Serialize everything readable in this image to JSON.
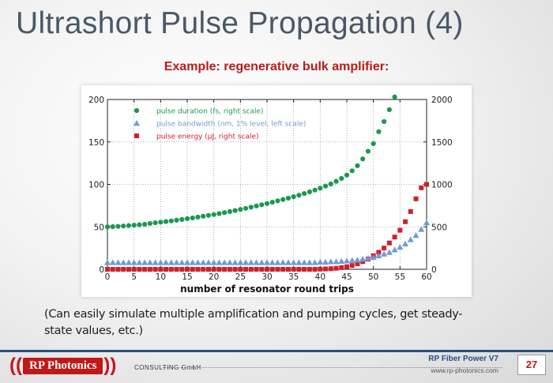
{
  "slide": {
    "title": "Ultrashort Pulse Propagation (4)",
    "subtitle": "Example: regenerative bulk amplifier:",
    "note": "(Can easily simulate multiple amplification and pumping cycles, get steady-state values, etc.)"
  },
  "footer": {
    "logo_left": "((",
    "logo_brand": "RP Photonics",
    "logo_right": "))",
    "consulting": "CONSULTING GmbH",
    "product": "RP Fiber Power V7",
    "website": "www.rp-photonics.com",
    "page_number": "27"
  },
  "colors": {
    "title": "#4a5868",
    "subtitle": "#b71c1c",
    "duration": "#1a9850",
    "bandwidth": "#6f9bd3",
    "energy": "#d0202a",
    "footer_line": "#2a4f80"
  },
  "chart_data": {
    "type": "scatter",
    "xlabel": "number of resonator round trips",
    "x_range": [
      0,
      60
    ],
    "y_left_range": [
      0,
      200
    ],
    "y_right_range": [
      0,
      2000
    ],
    "x_ticks": [
      0,
      5,
      10,
      15,
      20,
      25,
      30,
      35,
      40,
      45,
      50,
      55,
      60
    ],
    "y_left_ticks": [
      0,
      50,
      100,
      150,
      200
    ],
    "y_right_ticks": [
      0,
      500,
      1000,
      1500,
      2000
    ],
    "legend_position": "top-left",
    "series": [
      {
        "name": "pulse duration (fs, right scale)",
        "axis": "right",
        "marker": "circle",
        "color": "#1a9850",
        "x": [
          0,
          1,
          2,
          3,
          4,
          5,
          6,
          7,
          8,
          9,
          10,
          11,
          12,
          13,
          14,
          15,
          16,
          17,
          18,
          19,
          20,
          21,
          22,
          23,
          24,
          25,
          26,
          27,
          28,
          29,
          30,
          31,
          32,
          33,
          34,
          35,
          36,
          37,
          38,
          39,
          40,
          41,
          42,
          43,
          44,
          45,
          46,
          47,
          48,
          49,
          50,
          51,
          52,
          53,
          54
        ],
        "y": [
          500,
          502,
          505,
          510,
          515,
          520,
          525,
          530,
          540,
          548,
          555,
          562,
          570,
          578,
          587,
          596,
          605,
          615,
          625,
          635,
          645,
          656,
          668,
          680,
          692,
          705,
          718,
          732,
          746,
          760,
          775,
          790,
          806,
          822,
          838,
          855,
          873,
          892,
          912,
          933,
          955,
          980,
          1005,
          1035,
          1070,
          1110,
          1160,
          1220,
          1300,
          1390,
          1480,
          1620,
          1740,
          1880,
          2030
        ]
      },
      {
        "name": "pulse bandwidth (nm, 1% level, left scale)",
        "axis": "left",
        "marker": "triangle",
        "color": "#6f9bd3",
        "x": [
          0,
          1,
          2,
          3,
          4,
          5,
          6,
          7,
          8,
          9,
          10,
          11,
          12,
          13,
          14,
          15,
          16,
          17,
          18,
          19,
          20,
          21,
          22,
          23,
          24,
          25,
          26,
          27,
          28,
          29,
          30,
          31,
          32,
          33,
          34,
          35,
          36,
          37,
          38,
          39,
          40,
          41,
          42,
          43,
          44,
          45,
          46,
          47,
          48,
          49,
          50,
          51,
          52,
          53,
          54,
          55,
          56,
          57,
          58,
          59,
          60
        ],
        "y": [
          8,
          8,
          8,
          8,
          8,
          8,
          8,
          8,
          8,
          8,
          8,
          8,
          8,
          8,
          8,
          8,
          8,
          8,
          8,
          8,
          8,
          8,
          8,
          8,
          8,
          8,
          8,
          8,
          8,
          8,
          8,
          8,
          8,
          8,
          8,
          8,
          8,
          8,
          8,
          8,
          8.5,
          8.5,
          9,
          9,
          9.5,
          10,
          10.5,
          11,
          12,
          13,
          14,
          16,
          18,
          20,
          23,
          26,
          30,
          35,
          40,
          47,
          55
        ]
      },
      {
        "name": "pulse energy (µJ, right scale)",
        "axis": "right",
        "marker": "square",
        "color": "#d0202a",
        "x": [
          0,
          1,
          2,
          3,
          4,
          5,
          6,
          7,
          8,
          9,
          10,
          11,
          12,
          13,
          14,
          15,
          16,
          17,
          18,
          19,
          20,
          21,
          22,
          23,
          24,
          25,
          26,
          27,
          28,
          29,
          30,
          31,
          32,
          33,
          34,
          35,
          36,
          37,
          38,
          39,
          40,
          41,
          42,
          43,
          44,
          45,
          46,
          47,
          48,
          49,
          50,
          51,
          52,
          53,
          54,
          55,
          56,
          57,
          58,
          59,
          60
        ],
        "y": [
          0,
          0,
          0,
          0,
          0,
          0,
          0,
          0,
          0,
          0,
          0,
          0,
          0,
          0,
          0,
          0,
          0,
          0,
          0,
          0,
          0,
          0,
          0,
          0,
          0,
          0,
          0,
          0,
          0,
          0,
          0,
          0,
          0,
          0,
          0,
          0,
          0,
          0,
          0,
          0,
          2,
          4,
          7,
          12,
          20,
          30,
          45,
          65,
          90,
          120,
          160,
          200,
          250,
          310,
          380,
          460,
          560,
          680,
          830,
          960,
          1000
        ]
      }
    ]
  }
}
